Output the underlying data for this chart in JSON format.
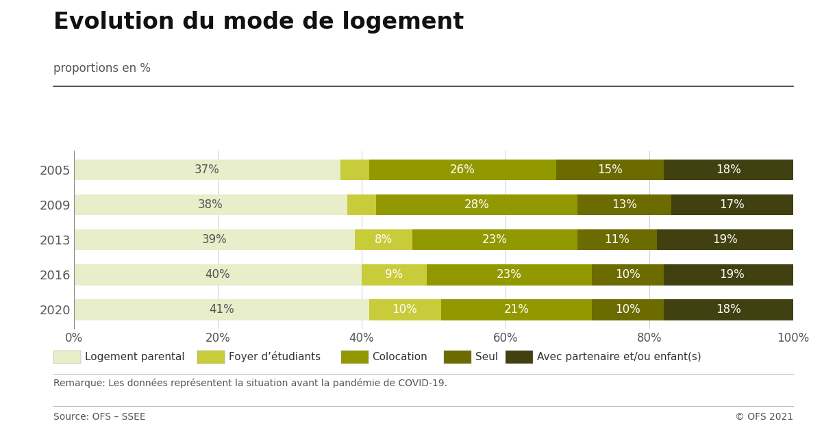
{
  "title": "Evolution du mode de logement",
  "subtitle": "proportions en %",
  "years": [
    "2005",
    "2009",
    "2013",
    "2016",
    "2020"
  ],
  "categories": [
    "Logement parental",
    "Foyer d’étudiants",
    "Colocation",
    "Seul",
    "Avec partenaire et/ou enfant(s)"
  ],
  "values": [
    [
      37,
      4,
      26,
      15,
      18
    ],
    [
      38,
      4,
      28,
      13,
      17
    ],
    [
      39,
      8,
      23,
      11,
      19
    ],
    [
      40,
      9,
      23,
      10,
      19
    ],
    [
      41,
      10,
      21,
      10,
      18
    ]
  ],
  "label_shown": [
    [
      true,
      false,
      true,
      true,
      true
    ],
    [
      true,
      false,
      true,
      true,
      true
    ],
    [
      true,
      true,
      true,
      true,
      true
    ],
    [
      true,
      true,
      true,
      true,
      true
    ],
    [
      true,
      true,
      true,
      true,
      true
    ]
  ],
  "colors": [
    "#e8edca",
    "#c9cc3a",
    "#929900",
    "#6b6b00",
    "#404010"
  ],
  "text_color_light": "#333333",
  "text_color_white": "#ffffff",
  "label_text_colors": [
    "#555555",
    "#ffffff",
    "#ffffff",
    "#ffffff",
    "#ffffff"
  ],
  "note": "Remarque: Les données représentent la situation avant la pandémie de COVID-19.",
  "source_left": "Source: OFS – SSEE",
  "source_right": "© OFS 2021",
  "background_color": "#ffffff",
  "bar_height": 0.6,
  "title_fontsize": 24,
  "subtitle_fontsize": 12,
  "axis_fontsize": 12,
  "label_fontsize": 12,
  "year_fontsize": 13
}
